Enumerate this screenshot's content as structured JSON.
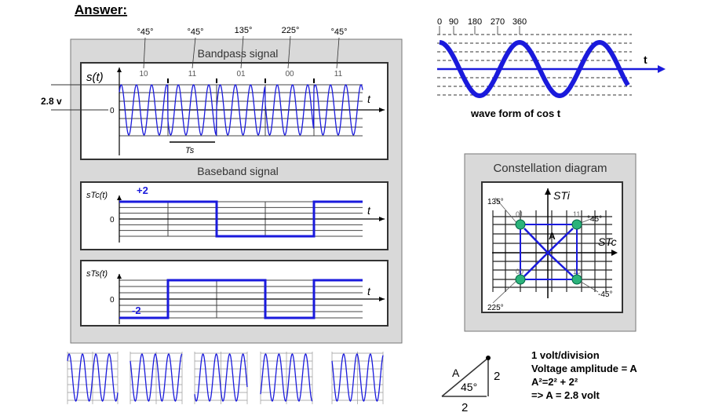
{
  "heading": "Answer:",
  "phase_labels": [
    "°45°",
    "°45°",
    "135°",
    "225°",
    "°45°"
  ],
  "bit_labels": [
    "10",
    "11",
    "01",
    "00",
    "11"
  ],
  "symbol_phases_deg": [
    -45,
    45,
    135,
    225,
    45
  ],
  "bandpass": {
    "title": "Bandpass signal",
    "ylabel": "s(t)",
    "xlabel": "t",
    "zero": "0",
    "period_label": "Ts",
    "amplitude_label": "2.8 v"
  },
  "baseband": {
    "title": "Baseband signal"
  },
  "i_channel": {
    "ylabel": "sTc(t)",
    "xlabel": "t",
    "zero": "0",
    "level_label": "+2",
    "levels": [
      2,
      2,
      -2,
      -2,
      2
    ]
  },
  "q_channel": {
    "ylabel": "sTs(t)",
    "xlabel": "t",
    "zero": "0",
    "level_label": "-2",
    "levels": [
      -2,
      2,
      2,
      -2,
      2
    ]
  },
  "cos_wave": {
    "angle_labels": [
      "0",
      "90",
      "180",
      "270",
      "360"
    ],
    "axis_label": "t",
    "caption": "wave form of  cos t"
  },
  "constellation": {
    "title": "Constellation diagram",
    "q_axis": "STi",
    "i_axis": "STc",
    "vector_label": "A",
    "points": [
      {
        "bits": "01",
        "angle": "135°"
      },
      {
        "bits": "11",
        "angle": "°45°"
      },
      {
        "bits": "00",
        "angle": "225°"
      },
      {
        "bits": "10",
        "angle": "-45°"
      }
    ]
  },
  "triangle": {
    "hyp": "A",
    "angle": "45°",
    "side_v": "2",
    "side_h": "2"
  },
  "notes": [
    "1 volt/division",
    "Voltage amplitude = A",
    "A²=2² + 2²",
    "=> A = 2.8 volt"
  ],
  "colors": {
    "signal": "#1a1adc",
    "panel_bg": "#d9d9d9",
    "point": "#2bb37a"
  }
}
